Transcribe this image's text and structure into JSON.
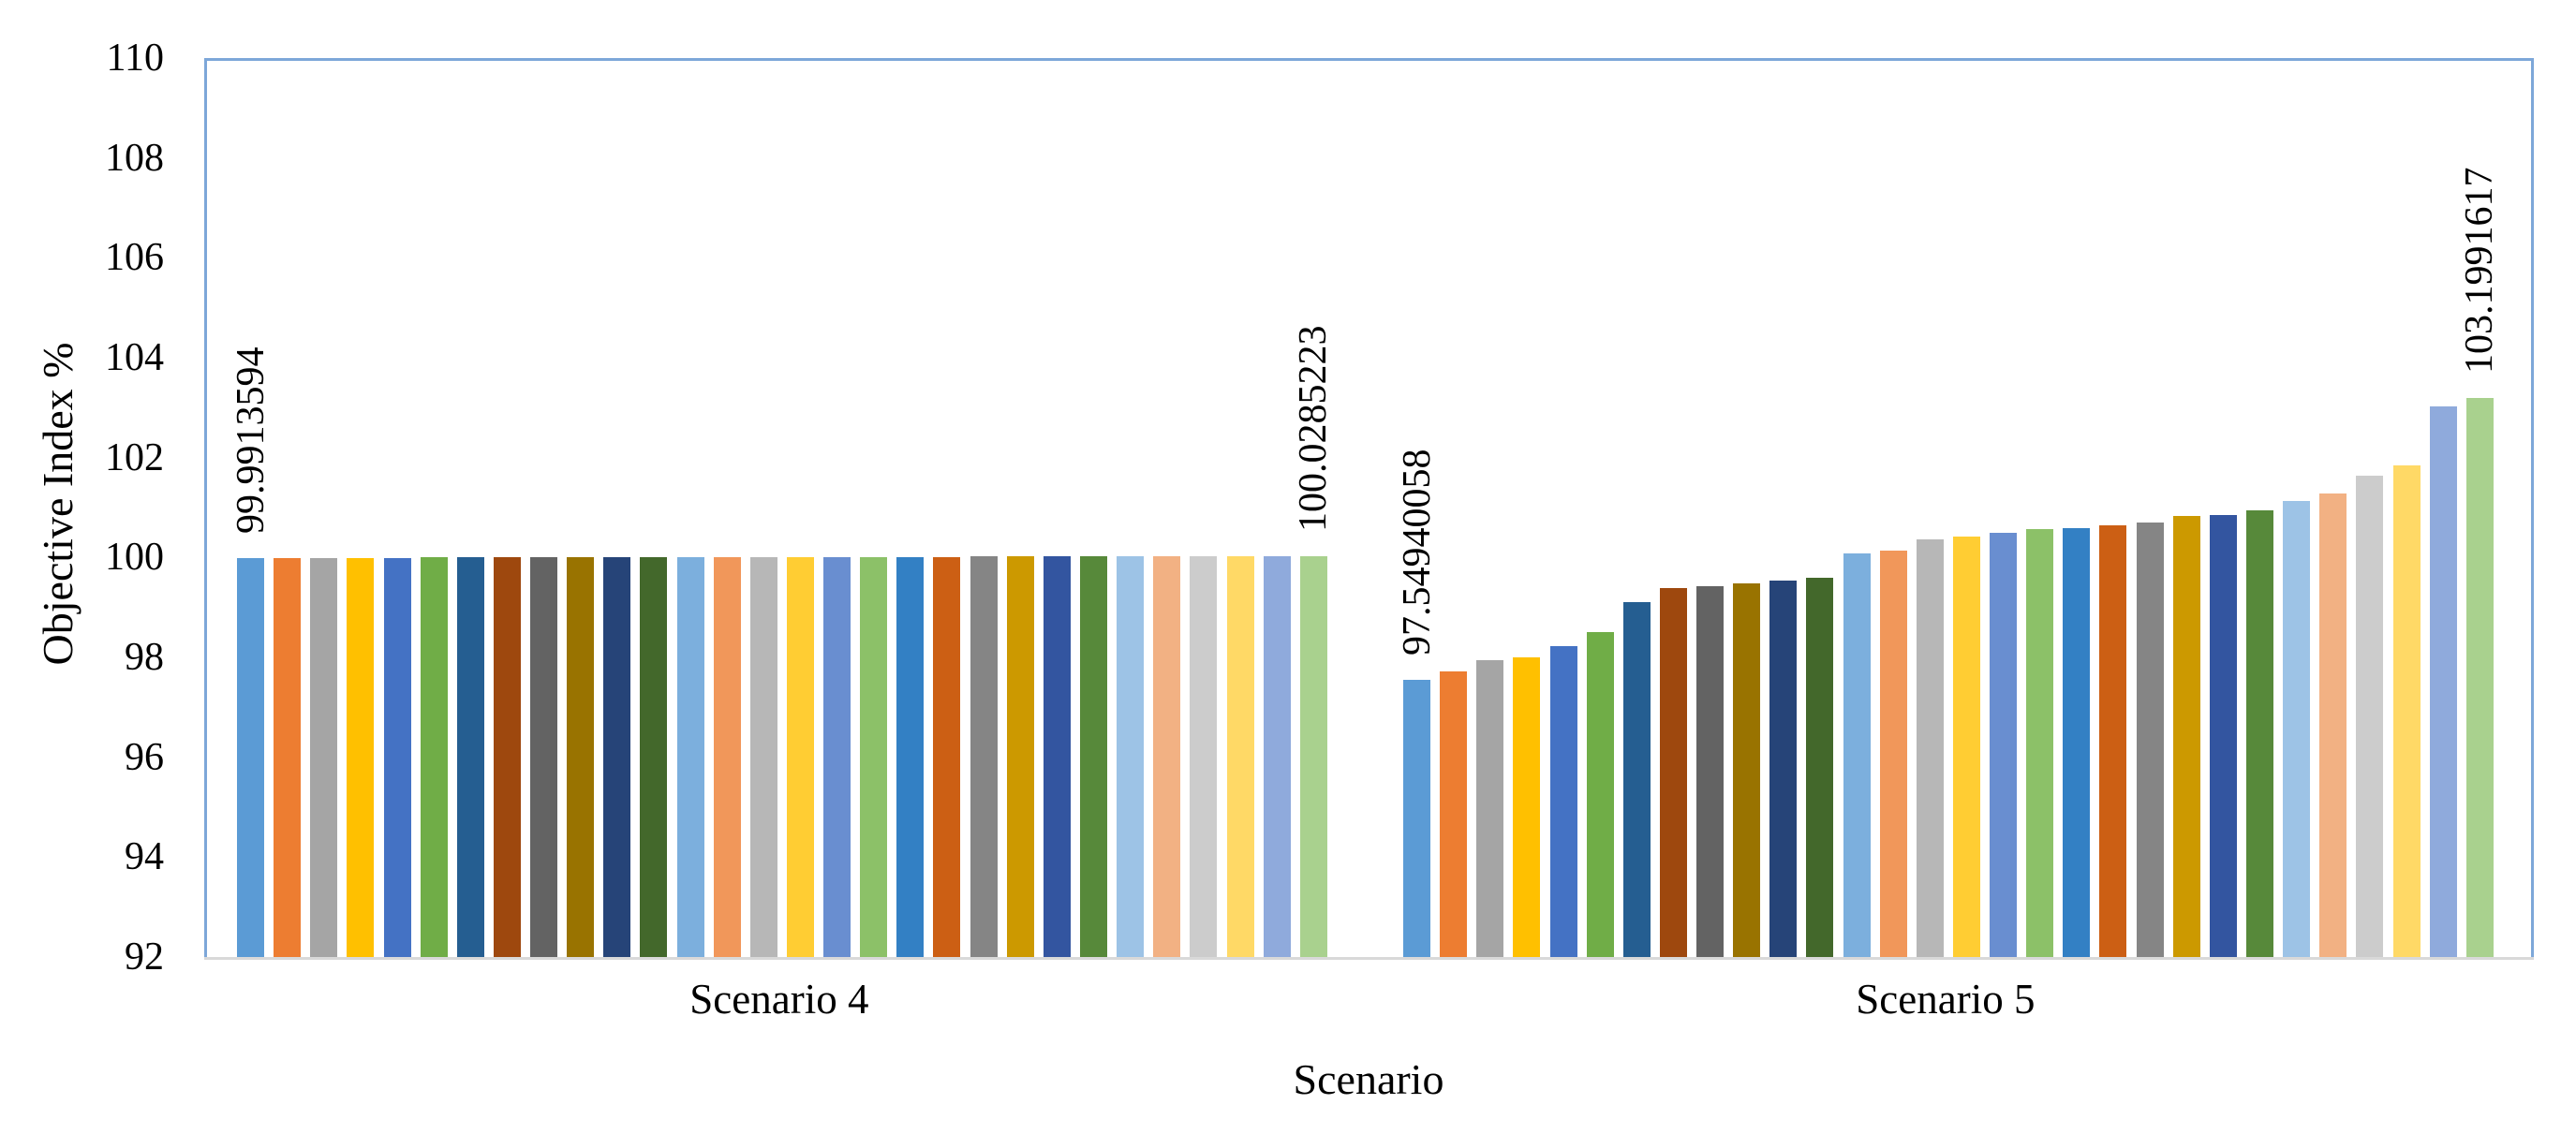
{
  "chart_data": {
    "type": "bar",
    "title": "",
    "xlabel": "Scenario",
    "ylabel": "Objective Index %",
    "ylim": [
      92,
      110
    ],
    "yticks": [
      92,
      94,
      96,
      98,
      100,
      102,
      104,
      106,
      108,
      110
    ],
    "grid": false,
    "legend": "none",
    "categories": [
      "Scenario 4",
      "Scenario 5"
    ],
    "bar_colors": [
      "#5B9BD5",
      "#ED7D31",
      "#A5A5A5",
      "#FFC000",
      "#4472C4",
      "#70AD47",
      "#255E91",
      "#9E480E",
      "#636363",
      "#997300",
      "#264478",
      "#43682B",
      "#7CAFDD",
      "#F1975A",
      "#B7B7B7",
      "#FFCD33",
      "#698ED0",
      "#8CC168",
      "#3380C4",
      "#CC5F14",
      "#858585",
      "#CC9900",
      "#3355A0",
      "#57893A",
      "#9DC3E6",
      "#F2B183",
      "#CCCCCC",
      "#FFD966",
      "#8FAADC",
      "#A9D18E"
    ],
    "groups": [
      {
        "category": "Scenario 4",
        "values": [
          99.9913594,
          99.9926409,
          99.9939224,
          99.9952038,
          99.9964853,
          99.9977668,
          99.9990483,
          100.0003297,
          100.0016112,
          100.0028927,
          100.0041742,
          100.0054557,
          100.0067371,
          100.0080186,
          100.0093001,
          100.0105816,
          100.011863,
          100.0131445,
          100.014426,
          100.0157075,
          100.016989,
          100.0182704,
          100.0195519,
          100.0208334,
          100.0221149,
          100.0233963,
          100.0246778,
          100.0259593,
          100.0272408,
          100.0285223
        ]
      },
      {
        "category": "Scenario 5",
        "values": [
          97.5494006,
          97.72,
          97.94,
          98.0,
          98.22,
          98.5,
          99.1,
          99.38,
          99.42,
          99.48,
          99.54,
          99.6,
          100.08,
          100.14,
          100.36,
          100.41,
          100.5,
          100.57,
          100.58,
          100.64,
          100.7,
          100.83,
          100.85,
          100.95,
          101.13,
          101.28,
          101.63,
          101.85,
          103.03,
          103.1991617
        ]
      }
    ],
    "data_labels": [
      {
        "group": 0,
        "bar": 0,
        "text": "99.9913594"
      },
      {
        "group": 0,
        "bar": 29,
        "text": "100.0285223"
      },
      {
        "group": 1,
        "bar": 0,
        "text": "97.54940058"
      },
      {
        "group": 1,
        "bar": 29,
        "text": "103.1991617"
      }
    ],
    "axis_border_color": "#7DA7D9",
    "baseline_color": "#D9D9D9",
    "text_color": "#000000",
    "background_color": "#FFFFFF"
  }
}
